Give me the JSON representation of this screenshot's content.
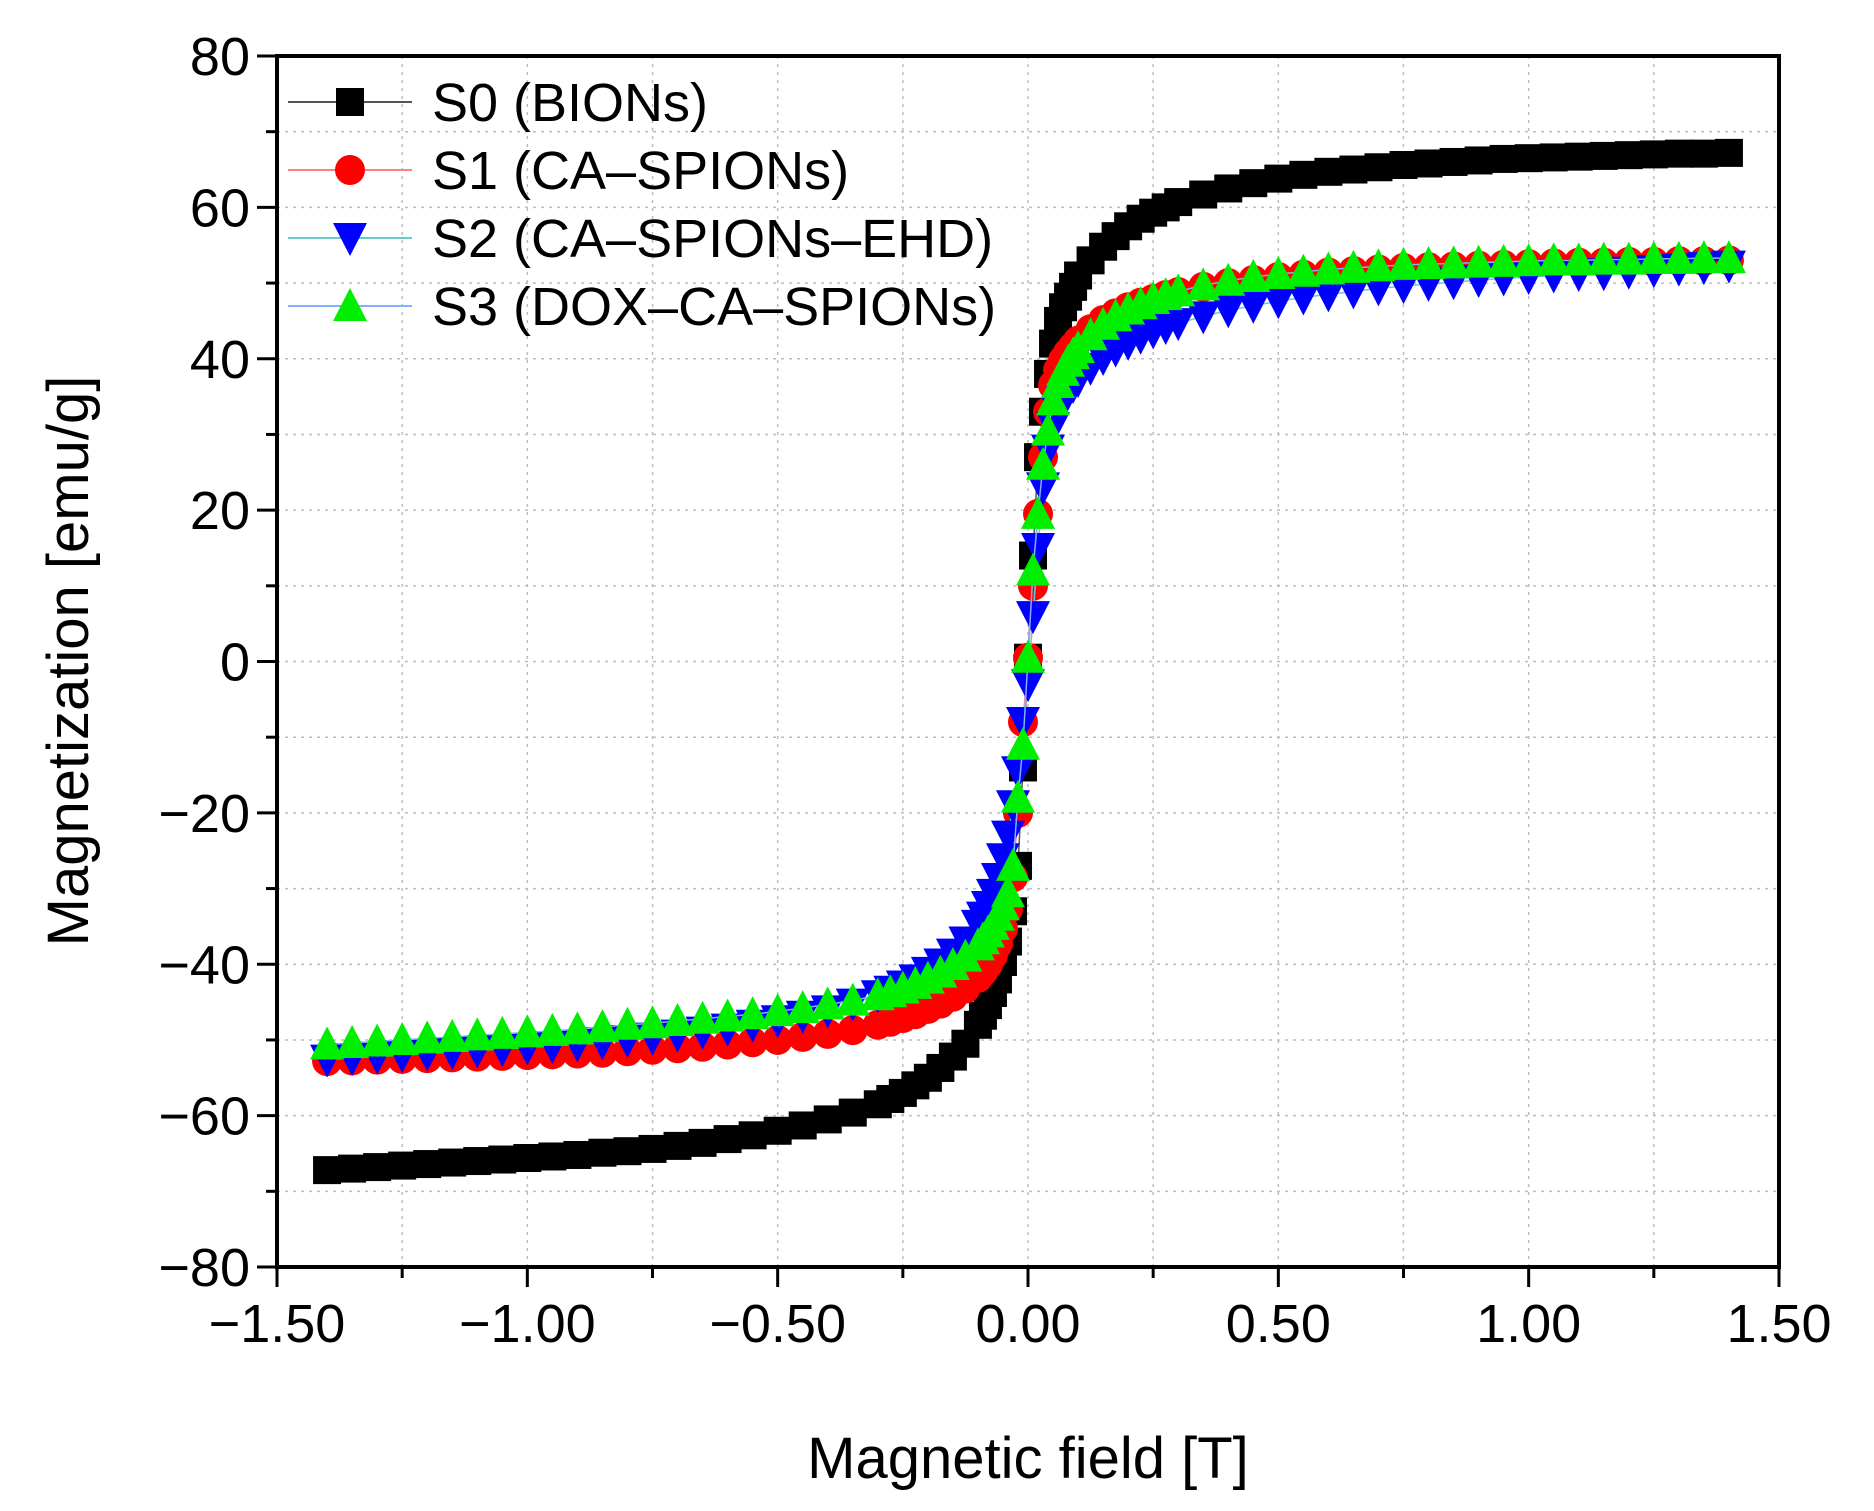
{
  "chart_data": {
    "type": "scatter",
    "title": "",
    "xlabel": "Magnetic field [T]",
    "ylabel": "Magnetization [emu/g]",
    "xlim": [
      -1.5,
      1.5
    ],
    "ylim": [
      -80,
      80
    ],
    "grid": true,
    "legend_position": "top-left",
    "x_ticks": [
      {
        "value": -1.5,
        "label": "−1.50"
      },
      {
        "value": -1.0,
        "label": "−1.00"
      },
      {
        "value": -0.5,
        "label": "−0.50"
      },
      {
        "value": 0.0,
        "label": "0.00"
      },
      {
        "value": 0.5,
        "label": "0.50"
      },
      {
        "value": 1.0,
        "label": "1.00"
      },
      {
        "value": 1.5,
        "label": "1.50"
      }
    ],
    "y_ticks": [
      {
        "value": -80,
        "label": "−80"
      },
      {
        "value": -60,
        "label": "−60"
      },
      {
        "value": -40,
        "label": "−40"
      },
      {
        "value": -20,
        "label": "−20"
      },
      {
        "value": 0,
        "label": "0"
      },
      {
        "value": 20,
        "label": "20"
      },
      {
        "value": 40,
        "label": "40"
      },
      {
        "value": 60,
        "label": "60"
      },
      {
        "value": 80,
        "label": "80"
      }
    ],
    "series": [
      {
        "name": "S0 (BIONs)",
        "marker": "square",
        "color": "#000000",
        "line_color": "#555555",
        "x": [
          -1.4,
          -1.35,
          -1.3,
          -1.25,
          -1.2,
          -1.15,
          -1.1,
          -1.05,
          -1.0,
          -0.95,
          -0.9,
          -0.85,
          -0.8,
          -0.75,
          -0.7,
          -0.65,
          -0.6,
          -0.55,
          -0.5,
          -0.45,
          -0.4,
          -0.35,
          -0.3,
          -0.275,
          -0.25,
          -0.225,
          -0.2,
          -0.175,
          -0.15,
          -0.125,
          -0.1,
          -0.09,
          -0.08,
          -0.07,
          -0.06,
          -0.05,
          -0.04,
          -0.03,
          -0.02,
          -0.01,
          0.0,
          0.01,
          0.02,
          0.03,
          0.04,
          0.05,
          0.06,
          0.07,
          0.08,
          0.09,
          0.1,
          0.125,
          0.15,
          0.175,
          0.2,
          0.225,
          0.25,
          0.275,
          0.3,
          0.35,
          0.4,
          0.45,
          0.5,
          0.55,
          0.6,
          0.65,
          0.7,
          0.75,
          0.8,
          0.85,
          0.9,
          0.95,
          1.0,
          1.05,
          1.1,
          1.15,
          1.2,
          1.25,
          1.3,
          1.35,
          1.4
        ],
        "y": [
          -67.2,
          -67.0,
          -66.8,
          -66.6,
          -66.4,
          -66.2,
          -66.0,
          -65.8,
          -65.6,
          -65.4,
          -65.2,
          -64.9,
          -64.7,
          -64.4,
          -64.0,
          -63.6,
          -63.1,
          -62.6,
          -62.0,
          -61.3,
          -60.5,
          -59.6,
          -58.5,
          -57.8,
          -57.0,
          -56.0,
          -55.0,
          -53.7,
          -52.2,
          -50.5,
          -48.0,
          -46.8,
          -45.4,
          -43.8,
          -42.0,
          -39.7,
          -37.0,
          -33.0,
          -27.0,
          -14.0,
          0.5,
          14.0,
          27.0,
          33.0,
          38.0,
          42.0,
          45.0,
          46.8,
          48.2,
          49.5,
          51.0,
          53.0,
          54.8,
          56.2,
          57.5,
          58.5,
          59.3,
          60.0,
          60.7,
          61.7,
          62.5,
          63.2,
          63.8,
          64.3,
          64.7,
          65.0,
          65.3,
          65.6,
          65.8,
          66.0,
          66.2,
          66.4,
          66.5,
          66.6,
          66.7,
          66.8,
          66.9,
          67.0,
          67.1,
          67.1,
          67.2
        ]
      },
      {
        "name": "S1 (CA–SPIONs)",
        "marker": "circle",
        "color": "#ff0000",
        "line_color": "#ff8080",
        "x": [
          -1.4,
          -1.35,
          -1.3,
          -1.25,
          -1.2,
          -1.15,
          -1.1,
          -1.05,
          -1.0,
          -0.95,
          -0.9,
          -0.85,
          -0.8,
          -0.75,
          -0.7,
          -0.65,
          -0.6,
          -0.55,
          -0.5,
          -0.45,
          -0.4,
          -0.35,
          -0.3,
          -0.275,
          -0.25,
          -0.225,
          -0.2,
          -0.175,
          -0.15,
          -0.125,
          -0.1,
          -0.09,
          -0.08,
          -0.07,
          -0.06,
          -0.05,
          -0.04,
          -0.03,
          -0.02,
          -0.01,
          0.0,
          0.01,
          0.02,
          0.03,
          0.04,
          0.05,
          0.06,
          0.07,
          0.08,
          0.09,
          0.1,
          0.125,
          0.15,
          0.175,
          0.2,
          0.225,
          0.25,
          0.275,
          0.3,
          0.35,
          0.4,
          0.45,
          0.5,
          0.55,
          0.6,
          0.65,
          0.7,
          0.75,
          0.8,
          0.85,
          0.9,
          0.95,
          1.0,
          1.05,
          1.1,
          1.15,
          1.2,
          1.25,
          1.3,
          1.35,
          1.4
        ],
        "y": [
          -52.8,
          -52.7,
          -52.6,
          -52.5,
          -52.4,
          -52.3,
          -52.2,
          -52.1,
          -52.0,
          -51.9,
          -51.8,
          -51.7,
          -51.5,
          -51.3,
          -51.1,
          -50.9,
          -50.6,
          -50.3,
          -50.0,
          -49.6,
          -49.2,
          -48.7,
          -48.0,
          -47.6,
          -47.1,
          -46.6,
          -45.9,
          -45.2,
          -44.3,
          -43.2,
          -41.8,
          -41.0,
          -40.0,
          -38.8,
          -37.3,
          -35.3,
          -32.7,
          -28.5,
          -20.0,
          -8.0,
          0.5,
          10.0,
          19.5,
          27.0,
          33.0,
          36.5,
          38.5,
          39.8,
          40.8,
          41.6,
          42.4,
          43.9,
          45.1,
          46.0,
          46.8,
          47.4,
          47.9,
          48.4,
          48.8,
          49.5,
          50.0,
          50.4,
          50.8,
          51.1,
          51.4,
          51.6,
          51.8,
          52.0,
          52.1,
          52.2,
          52.3,
          52.4,
          52.5,
          52.6,
          52.7,
          52.7,
          52.8,
          52.8,
          52.9,
          52.9,
          53.0
        ]
      },
      {
        "name": "S2 (CA–SPIONs–EHD)",
        "marker": "triangle-down",
        "color": "#0000ff",
        "line_color": "#66cccc",
        "x": [
          -1.4,
          -1.35,
          -1.3,
          -1.25,
          -1.2,
          -1.15,
          -1.1,
          -1.05,
          -1.0,
          -0.95,
          -0.9,
          -0.85,
          -0.8,
          -0.75,
          -0.7,
          -0.65,
          -0.6,
          -0.55,
          -0.5,
          -0.45,
          -0.4,
          -0.35,
          -0.3,
          -0.275,
          -0.25,
          -0.225,
          -0.2,
          -0.175,
          -0.15,
          -0.125,
          -0.1,
          -0.09,
          -0.08,
          -0.07,
          -0.06,
          -0.05,
          -0.04,
          -0.03,
          -0.02,
          -0.01,
          0.0,
          0.01,
          0.02,
          0.03,
          0.04,
          0.05,
          0.06,
          0.07,
          0.08,
          0.09,
          0.1,
          0.125,
          0.15,
          0.175,
          0.2,
          0.225,
          0.25,
          0.275,
          0.3,
          0.35,
          0.4,
          0.45,
          0.5,
          0.55,
          0.6,
          0.65,
          0.7,
          0.75,
          0.8,
          0.85,
          0.9,
          0.95,
          1.0,
          1.05,
          1.1,
          1.15,
          1.2,
          1.25,
          1.3,
          1.35,
          1.4
        ],
        "y": [
          -52.6,
          -52.4,
          -52.2,
          -52.0,
          -51.8,
          -51.6,
          -51.4,
          -51.2,
          -51.0,
          -50.8,
          -50.6,
          -50.3,
          -50.0,
          -49.7,
          -49.3,
          -48.9,
          -48.5,
          -48.0,
          -47.4,
          -46.8,
          -46.1,
          -45.2,
          -44.1,
          -43.5,
          -42.8,
          -42.0,
          -41.0,
          -39.9,
          -38.6,
          -37.0,
          -34.8,
          -33.7,
          -32.3,
          -30.7,
          -28.6,
          -26.0,
          -23.0,
          -19.0,
          -14.5,
          -8.0,
          -3.0,
          6.0,
          15.0,
          23.0,
          28.0,
          31.0,
          33.0,
          34.4,
          35.5,
          36.4,
          37.2,
          38.8,
          40.1,
          41.2,
          42.1,
          42.9,
          43.6,
          44.2,
          44.7,
          45.6,
          46.4,
          47.0,
          47.6,
          48.1,
          48.5,
          48.9,
          49.3,
          49.6,
          49.9,
          50.1,
          50.4,
          50.6,
          50.8,
          51.0,
          51.2,
          51.3,
          51.5,
          51.7,
          51.9,
          52.1,
          52.3
        ]
      },
      {
        "name": "S3 (DOX–CA–SPIONs)",
        "marker": "triangle-up",
        "color": "#00ee00",
        "line_color": "#80b0ff",
        "x": [
          -1.4,
          -1.35,
          -1.3,
          -1.25,
          -1.2,
          -1.15,
          -1.1,
          -1.05,
          -1.0,
          -0.95,
          -0.9,
          -0.85,
          -0.8,
          -0.75,
          -0.7,
          -0.65,
          -0.6,
          -0.55,
          -0.5,
          -0.45,
          -0.4,
          -0.35,
          -0.3,
          -0.275,
          -0.25,
          -0.225,
          -0.2,
          -0.175,
          -0.15,
          -0.125,
          -0.1,
          -0.09,
          -0.08,
          -0.07,
          -0.06,
          -0.05,
          -0.04,
          -0.03,
          -0.02,
          -0.01,
          0.0,
          0.01,
          0.02,
          0.03,
          0.04,
          0.05,
          0.06,
          0.07,
          0.08,
          0.09,
          0.1,
          0.125,
          0.15,
          0.175,
          0.2,
          0.225,
          0.25,
          0.275,
          0.3,
          0.35,
          0.4,
          0.45,
          0.5,
          0.55,
          0.6,
          0.65,
          0.7,
          0.75,
          0.8,
          0.85,
          0.9,
          0.95,
          1.0,
          1.05,
          1.1,
          1.15,
          1.2,
          1.25,
          1.3,
          1.35,
          1.4
        ],
        "y": [
          -50.6,
          -50.4,
          -50.2,
          -50.0,
          -49.8,
          -49.6,
          -49.4,
          -49.2,
          -49.0,
          -48.8,
          -48.6,
          -48.3,
          -48.0,
          -47.8,
          -47.5,
          -47.2,
          -46.9,
          -46.6,
          -46.2,
          -45.8,
          -45.3,
          -44.8,
          -44.1,
          -43.7,
          -43.2,
          -42.6,
          -41.9,
          -41.1,
          -40.1,
          -39.0,
          -37.5,
          -36.7,
          -35.8,
          -34.8,
          -33.6,
          -32.2,
          -30.5,
          -27.0,
          -18.0,
          -11.0,
          0.5,
          12.0,
          19.5,
          26.0,
          30.5,
          34.5,
          36.8,
          38.4,
          39.6,
          40.6,
          41.4,
          43.1,
          44.5,
          45.6,
          46.5,
          47.2,
          47.9,
          48.4,
          48.9,
          49.7,
          50.3,
          50.8,
          51.2,
          51.5,
          51.8,
          52.0,
          52.2,
          52.4,
          52.5,
          52.6,
          52.7,
          52.8,
          52.9,
          53.0,
          53.0,
          53.1,
          53.1,
          53.2,
          53.2,
          53.3,
          53.3
        ]
      }
    ]
  }
}
